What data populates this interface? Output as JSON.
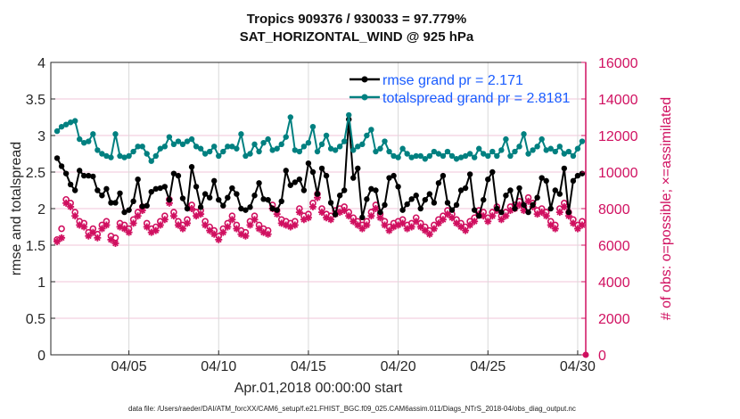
{
  "chart_data": {
    "type": "line",
    "title": [
      "Tropics 909376 / 930033 = 97.779%",
      "SAT_HORIZONTAL_WIND @ 925 hPa"
    ],
    "xlabel": "Apr.01,2018 00:00:00 start",
    "ylabel": "rmse and totalspread",
    "ylabel_right": "# of obs: o=possible; ×=assimilated",
    "footnote": "data file: /Users/raeder/DAI/ATM_forcXX/CAM6_setup/f.e21.FHIST_BGC.f09_025.CAM6assim.011/Diags_NTrS_2018-04/obs_diag_output.nc",
    "xlim_days": [
      -0.35,
      29.45
    ],
    "x_step_days": 0.25,
    "xticks": [
      {
        "day": 4,
        "label": "04/05"
      },
      {
        "day": 9,
        "label": "04/10"
      },
      {
        "day": 14,
        "label": "04/15"
      },
      {
        "day": 19,
        "label": "04/20"
      },
      {
        "day": 24,
        "label": "04/25"
      },
      {
        "day": 29,
        "label": "04/30"
      }
    ],
    "ylim": [
      0,
      4
    ],
    "yticks": [
      "0",
      "0.5",
      "1",
      "1.5",
      "2",
      "2.5",
      "3",
      "3.5",
      "4"
    ],
    "ylim_right": [
      0,
      16000
    ],
    "yticks_right": [
      "0",
      "2000",
      "4000",
      "6000",
      "8000",
      "10000",
      "12000",
      "14000",
      "16000"
    ],
    "grid": true,
    "legend_position": "top-right",
    "colors": {
      "rmse": "#000000",
      "totalspread": "#008080",
      "obs": "#d01060",
      "legend_text": "#1a5cff"
    },
    "series": [
      {
        "name": "rmse grand pr = 2.171",
        "key": "rmse",
        "values": [
          2.69,
          2.58,
          2.48,
          2.33,
          2.25,
          2.52,
          2.45,
          2.45,
          2.44,
          2.25,
          2.18,
          2.27,
          2.08,
          2.08,
          2.21,
          1.95,
          1.98,
          2.1,
          2.4,
          2.03,
          2.04,
          2.23,
          2.27,
          2.28,
          2.3,
          2.12,
          2.48,
          2.45,
          2.14,
          2.0,
          2.57,
          2.3,
          2.02,
          2.2,
          2.15,
          2.38,
          2.12,
          2.04,
          2.15,
          2.28,
          2.2,
          2.0,
          1.98,
          2.02,
          2.18,
          2.35,
          2.13,
          2.12,
          2.0,
          1.98,
          2.1,
          2.52,
          2.32,
          2.36,
          2.4,
          2.25,
          2.62,
          2.5,
          2.2,
          2.55,
          2.45,
          2.08,
          1.92,
          2.18,
          2.25,
          3.22,
          2.42,
          2.55,
          1.88,
          2.13,
          2.27,
          2.25,
          1.95,
          2.05,
          2.42,
          2.45,
          2.3,
          1.98,
          2.06,
          2.13,
          2.18,
          2.0,
          2.12,
          2.2,
          2.08,
          2.35,
          2.45,
          2.08,
          1.98,
          2.05,
          2.25,
          2.28,
          2.47,
          1.98,
          1.9,
          2.12,
          2.4,
          2.5,
          2.0,
          1.95,
          2.18,
          2.25,
          2.0,
          2.28,
          2.05,
          1.95,
          2.05,
          2.15,
          2.42,
          2.38,
          2.0,
          2.25,
          2.2,
          2.55,
          1.95,
          2.38,
          2.45,
          2.48
        ]
      },
      {
        "name": "totalspread grand pr = 2.8181",
        "key": "totalspread",
        "values": [
          3.06,
          3.12,
          3.15,
          3.18,
          3.2,
          2.95,
          2.9,
          2.92,
          3.02,
          2.8,
          2.75,
          2.72,
          2.7,
          3.02,
          2.72,
          2.7,
          2.72,
          2.78,
          2.85,
          2.85,
          2.75,
          2.65,
          2.72,
          2.82,
          2.85,
          2.98,
          2.88,
          2.92,
          2.88,
          2.92,
          2.95,
          2.85,
          2.82,
          2.75,
          2.78,
          2.85,
          2.72,
          2.78,
          2.85,
          2.85,
          2.82,
          3.02,
          2.72,
          2.75,
          2.88,
          2.78,
          2.9,
          2.95,
          2.8,
          2.82,
          2.88,
          2.98,
          3.25,
          2.8,
          2.78,
          2.85,
          2.9,
          3.12,
          2.78,
          2.88,
          3.0,
          2.82,
          2.8,
          2.85,
          2.92,
          3.28,
          2.8,
          2.85,
          2.88,
          3.0,
          3.08,
          2.78,
          2.82,
          2.92,
          2.78,
          2.72,
          2.7,
          2.82,
          2.75,
          2.7,
          2.72,
          2.72,
          2.68,
          2.72,
          2.78,
          2.75,
          2.72,
          2.78,
          2.72,
          2.68,
          2.7,
          2.72,
          2.75,
          2.7,
          2.82,
          2.75,
          2.72,
          2.78,
          2.72,
          2.8,
          2.95,
          2.72,
          2.78,
          2.85,
          3.02,
          2.75,
          2.8,
          2.85,
          2.95,
          2.8,
          2.82,
          2.78,
          2.85,
          2.75,
          2.78,
          2.72,
          2.82,
          2.92
        ],
        "_note": "approximate"
      },
      {
        "name": "obs possible",
        "key": "obs_possible",
        "values": [
          6300,
          6900,
          8500,
          8300,
          7800,
          7300,
          7200,
          6700,
          6900,
          6600,
          7100,
          7300,
          6500,
          6400,
          7200,
          7100,
          6900,
          7400,
          7800,
          8100,
          7200,
          6900,
          7000,
          7300,
          7600,
          8500,
          7800,
          7300,
          7100,
          7400,
          8200,
          7800,
          7900,
          7300,
          7000,
          6800,
          6500,
          6900,
          7200,
          7600,
          7100,
          6800,
          6700,
          7300,
          7600,
          7100,
          6900,
          6800,
          8200,
          7900,
          7400,
          7300,
          7200,
          7300,
          8000,
          7600,
          7700,
          8300,
          8800,
          8000,
          7700,
          7600,
          7900,
          8000,
          8100,
          7800,
          7500,
          7300,
          7100,
          7300,
          7800,
          8200,
          7700,
          7300,
          7000,
          7200,
          7300,
          7400,
          7100,
          7200,
          7500,
          7200,
          7000,
          6800,
          7100,
          7400,
          7600,
          7900,
          7700,
          7400,
          7200,
          7000,
          7300,
          7500,
          7900,
          7800,
          7500,
          7800,
          8100,
          7600,
          7800,
          8100,
          8200,
          8400,
          8100,
          8600,
          8300,
          7900,
          8000,
          7800,
          7300,
          7100,
          8000,
          8300,
          7800,
          7400,
          7100,
          7300
        ],
        "_note": "approximate, plotted as o"
      },
      {
        "name": "obs assimilated",
        "key": "obs_assimilated",
        "values": [
          6200,
          6400,
          8300,
          8100,
          7600,
          7100,
          7000,
          6500,
          6700,
          6400,
          6900,
          7100,
          6300,
          6100,
          7000,
          6900,
          6700,
          7200,
          7600,
          7900,
          7000,
          6700,
          6800,
          7100,
          7400,
          8300,
          7600,
          7100,
          6900,
          7200,
          8000,
          7600,
          7700,
          7100,
          6800,
          6600,
          6300,
          6700,
          7000,
          7400,
          6900,
          6600,
          6500,
          7100,
          7400,
          6900,
          6700,
          6600,
          8000,
          7700,
          7200,
          7100,
          7000,
          7100,
          7800,
          7400,
          7500,
          8100,
          8600,
          7800,
          7500,
          7400,
          7700,
          7800,
          7900,
          7600,
          7300,
          7100,
          6900,
          7100,
          7600,
          8000,
          7500,
          7100,
          6800,
          7000,
          7100,
          7200,
          6900,
          7000,
          7300,
          7000,
          6800,
          6600,
          6900,
          7200,
          7400,
          7700,
          7500,
          7200,
          7000,
          6800,
          7100,
          7300,
          7700,
          7600,
          7300,
          7600,
          7900,
          7400,
          7600,
          7900,
          8000,
          8200,
          7900,
          8400,
          8100,
          7700,
          7800,
          7600,
          7100,
          6900,
          7800,
          8100,
          7600,
          7200,
          6900,
          7100
        ],
        "_note": "approximate, plotted as *"
      }
    ]
  }
}
